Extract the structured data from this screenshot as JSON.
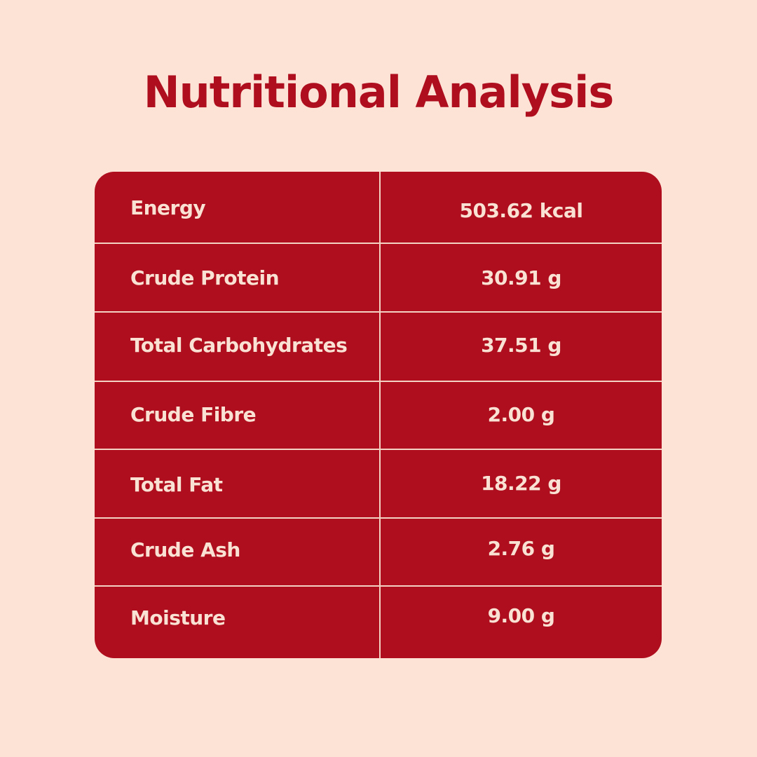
{
  "colors": {
    "background": "#FCE3D5",
    "title": "#AE0E1E",
    "table_fill": "#AE0E1E",
    "table_text": "#F9E2D3",
    "divider": "#F3D2C3"
  },
  "title": "Nutritional Analysis",
  "rows": [
    {
      "label": "Energy",
      "value": "503.62 kcal"
    },
    {
      "label": "Crude Protein",
      "value": "30.91 g"
    },
    {
      "label": "Total Carbohydrates",
      "value": "37.51 g"
    },
    {
      "label": "Crude Fibre",
      "value": "2.00 g"
    },
    {
      "label": "Total Fat",
      "value": "18.22 g"
    },
    {
      "label": "Crude Ash",
      "value": "2.76 g"
    },
    {
      "label": "Moisture",
      "value": "9.00 g"
    }
  ]
}
